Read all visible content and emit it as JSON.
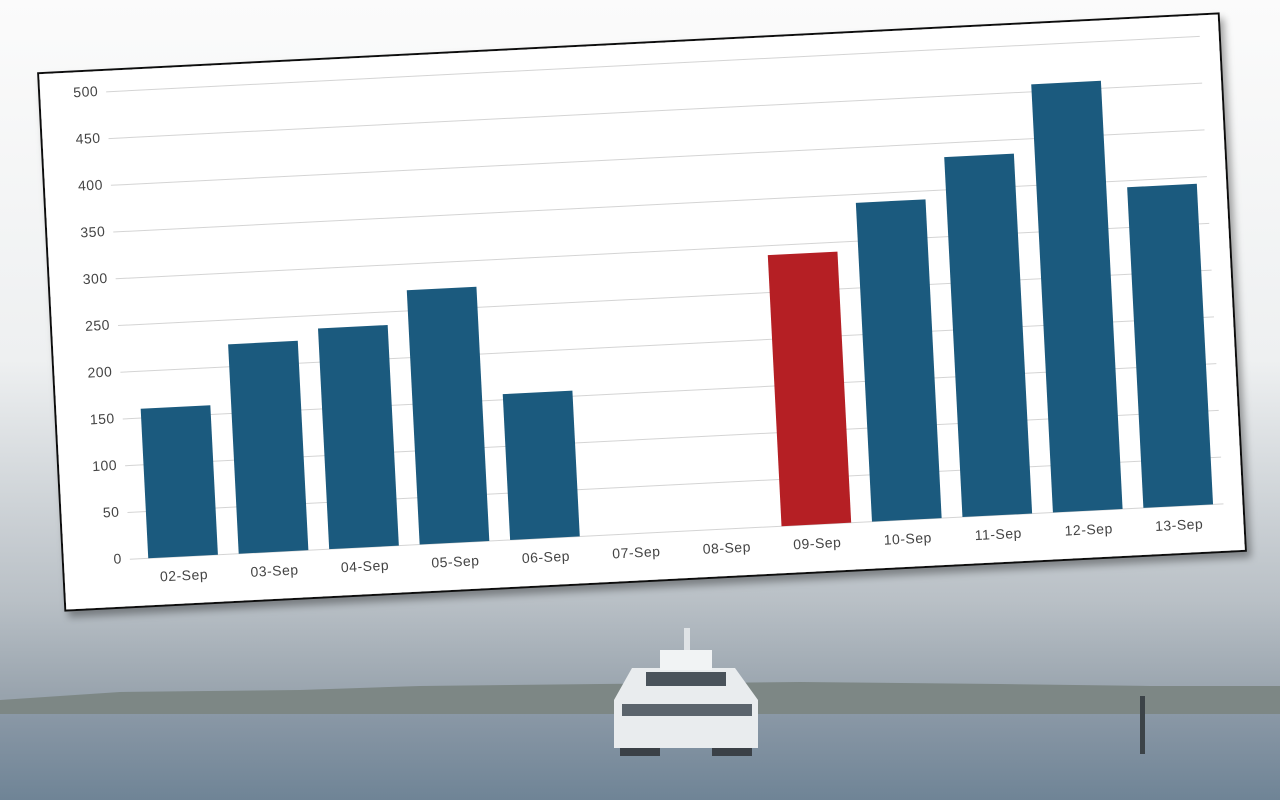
{
  "chart_data": {
    "type": "bar",
    "categories": [
      "02-Sep",
      "03-Sep",
      "04-Sep",
      "05-Sep",
      "06-Sep",
      "07-Sep",
      "08-Sep",
      "09-Sep",
      "10-Sep",
      "11-Sep",
      "12-Sep",
      "13-Sep"
    ],
    "values": [
      160,
      224,
      236,
      272,
      156,
      null,
      null,
      290,
      341,
      385,
      458,
      343
    ],
    "colors": [
      "#1b5a7e",
      "#1b5a7e",
      "#1b5a7e",
      "#1b5a7e",
      "#1b5a7e",
      "#1b5a7e",
      "#1b5a7e",
      "#b51f24",
      "#1b5a7e",
      "#1b5a7e",
      "#1b5a7e",
      "#1b5a7e"
    ],
    "ylim": [
      0,
      500
    ],
    "yticks": [
      0,
      50,
      100,
      150,
      200,
      250,
      300,
      350,
      400,
      450,
      500
    ],
    "grid": true
  }
}
